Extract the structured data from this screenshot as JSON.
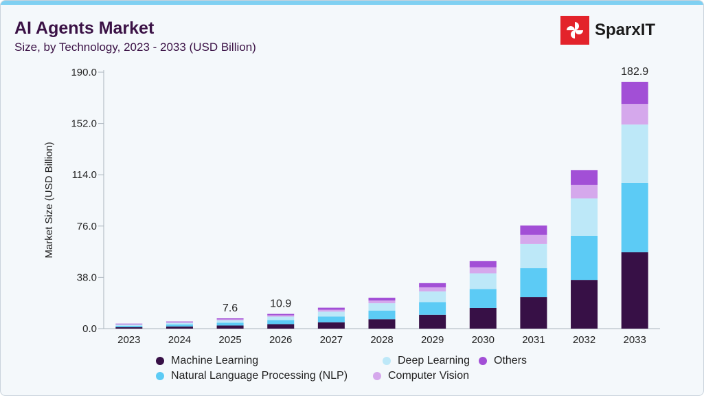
{
  "header": {
    "title": "AI Agents Market",
    "subtitle": "Size, by Technology, 2023 - 2033 (USD Billion)",
    "logo": "SparxIT"
  },
  "chart_data": {
    "type": "bar",
    "stacked": true,
    "ylabel": "Market Size (USD Billion)",
    "ylim": [
      0,
      190
    ],
    "yticks": [
      "0.0",
      "38.0",
      "76.0",
      "114.0",
      "152.0",
      "190.0"
    ],
    "categories": [
      "2023",
      "2024",
      "2025",
      "2026",
      "2027",
      "2028",
      "2029",
      "2030",
      "2031",
      "2032",
      "2033"
    ],
    "series": [
      {
        "name": "Machine Learning",
        "color": "#371046",
        "values": [
          1.1,
          1.6,
          2.3,
          3.3,
          4.7,
          7.0,
          10.3,
          15.3,
          23.4,
          36.1,
          56.6
        ]
      },
      {
        "name": "Natural Language Processing (NLP)",
        "color": "#5ccbf5",
        "values": [
          1.0,
          1.5,
          2.1,
          3.0,
          4.3,
          6.4,
          9.4,
          14.0,
          21.4,
          32.7,
          51.4
        ]
      },
      {
        "name": "Deep Learning",
        "color": "#bde8f8",
        "values": [
          0.9,
          1.2,
          1.8,
          2.6,
          3.6,
          5.4,
          7.9,
          11.7,
          17.9,
          27.7,
          43.2
        ]
      },
      {
        "name": "Computer Vision",
        "color": "#d5a8ec",
        "values": [
          0.3,
          0.5,
          0.7,
          1.0,
          1.4,
          2.0,
          3.0,
          4.4,
          6.7,
          10.0,
          15.3
        ]
      },
      {
        "name": "Others",
        "color": "#a24fd6",
        "values": [
          0.4,
          0.5,
          0.7,
          1.0,
          1.5,
          2.1,
          3.1,
          4.6,
          7.0,
          11.0,
          16.4
        ]
      }
    ],
    "data_labels": [
      {
        "category": "2025",
        "text": "7.6"
      },
      {
        "category": "2026",
        "text": "10.9"
      },
      {
        "category": "2033",
        "text": "182.9"
      }
    ],
    "grid": false,
    "legend_placement": "bottom"
  }
}
